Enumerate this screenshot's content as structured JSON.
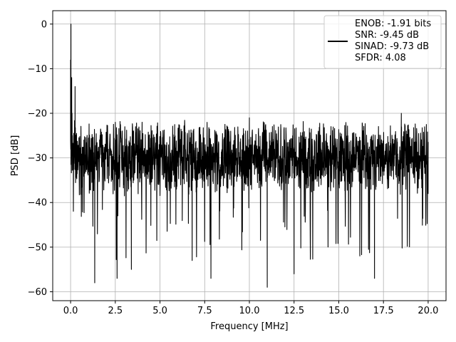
{
  "chart_data": {
    "type": "line",
    "xlabel": "Frequency [MHz]",
    "ylabel": "PSD [dB]",
    "xlim": [
      -1.0,
      21.0
    ],
    "ylim": [
      -62.0,
      3.0
    ],
    "x_ticks": [
      0.0,
      2.5,
      5.0,
      7.5,
      10.0,
      12.5,
      15.0,
      17.5,
      20.0
    ],
    "x_tick_labels": [
      "0.0",
      "2.5",
      "5.0",
      "7.5",
      "10.0",
      "12.5",
      "15.0",
      "17.5",
      "20.0"
    ],
    "y_ticks": [
      0,
      -10,
      -20,
      -30,
      -40,
      -50,
      -60
    ],
    "y_tick_labels": [
      "0",
      "−10",
      "−20",
      "−30",
      "−40",
      "−50",
      "−60"
    ],
    "grid": true,
    "legend_position": "top-right",
    "legend": [
      "ENOB: -1.91 bits",
      "SNR: -9.45 dB",
      "SINAD: -9.73 dB",
      "SFDR: 4.08"
    ],
    "series": [
      {
        "color": "#000000",
        "noise_floor_db": -30,
        "noise_band_db": [
          -38,
          -22
        ],
        "x": [
          0.0,
          0.02,
          0.04,
          0.06,
          0.08,
          0.1,
          0.15,
          0.25,
          0.4,
          0.8,
          1.35,
          2.6,
          3.4,
          4.0,
          6.8,
          7.85,
          10.0,
          11.0,
          12.5,
          17.0,
          18.5,
          20.0
        ],
        "y": [
          -8,
          0,
          -25,
          -12,
          -20,
          -25,
          -30,
          -14,
          -30,
          -33,
          -58,
          -57,
          -55,
          -22,
          -53,
          -57,
          -21,
          -59,
          -56,
          -57,
          -20,
          -38
        ]
      }
    ]
  }
}
